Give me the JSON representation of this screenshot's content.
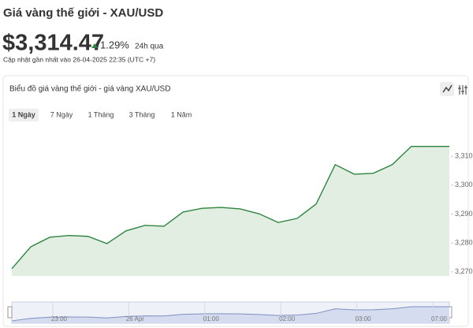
{
  "header": {
    "title": "Giá vàng thế giới - XAU/USD",
    "price": "$3,314.47",
    "change": "1.29%",
    "period": "24h qua",
    "updated": "Cập nhật gần nhất vào 26-04-2025 22:35 (UTC +7)"
  },
  "card": {
    "title": "Biểu đồ giá vàng thế giới - giá vàng XAU/USD",
    "tabs": [
      "1 Ngày",
      "7 Ngày",
      "1 Tháng",
      "3 Tháng",
      "1 Năm"
    ]
  },
  "chart_data": {
    "type": "area",
    "color": "#2e8540",
    "fill": "#e2eee2",
    "values": [
      3271.1,
      3278.7,
      3282.0,
      3282.6,
      3282.3,
      3279.8,
      3284.2,
      3286.1,
      3285.8,
      3290.7,
      3292.0,
      3292.3,
      3291.8,
      3290.1,
      3287.1,
      3288.5,
      3293.5,
      3307.1,
      3303.8,
      3304.1,
      3307.1,
      3313.4,
      3313.4,
      3313.4
    ],
    "ylim": [
      3268.6,
      3320.4
    ],
    "yticks": [
      {
        "value": 3270,
        "label": "3,270"
      },
      {
        "value": 3280,
        "label": "3,280"
      },
      {
        "value": 3290,
        "label": "3,290"
      },
      {
        "value": 3300,
        "label": "3,300"
      },
      {
        "value": 3310,
        "label": "3,310"
      }
    ],
    "navigator_labels": [
      "23:00",
      "26 Apr",
      "01:00",
      "02:00",
      "03:00",
      "07:00"
    ]
  }
}
